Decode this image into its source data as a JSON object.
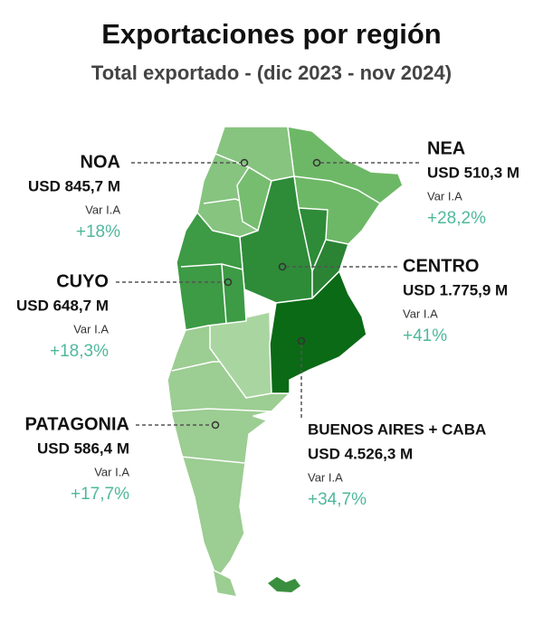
{
  "title": "Exportaciones por región",
  "subtitle": "Total exportado - (dic 2023 - nov 2024)",
  "regions": [
    {
      "name": "NOA",
      "value": "USD 845,7 M",
      "var_label": "Var I.A",
      "var": "+18%"
    },
    {
      "name": "NEA",
      "value": "USD 510,3 M",
      "var_label": "Var I.A",
      "var": "+28,2%"
    },
    {
      "name": "CUYO",
      "value": "USD 648,7 M",
      "var_label": "Var I.A",
      "var": "+18,3%"
    },
    {
      "name": "CENTRO",
      "value": "USD 1.775,9 M",
      "var_label": "Var I.A",
      "var": "+41%"
    },
    {
      "name": "PATAGONIA",
      "value": "USD 586,4 M",
      "var_label": "Var I.A",
      "var": "+17,7%"
    },
    {
      "name": "BUENOS AIRES + CABA",
      "value": "USD 4.526,3 M",
      "var_label": "Var I.A",
      "var": "+34,7%"
    }
  ]
}
